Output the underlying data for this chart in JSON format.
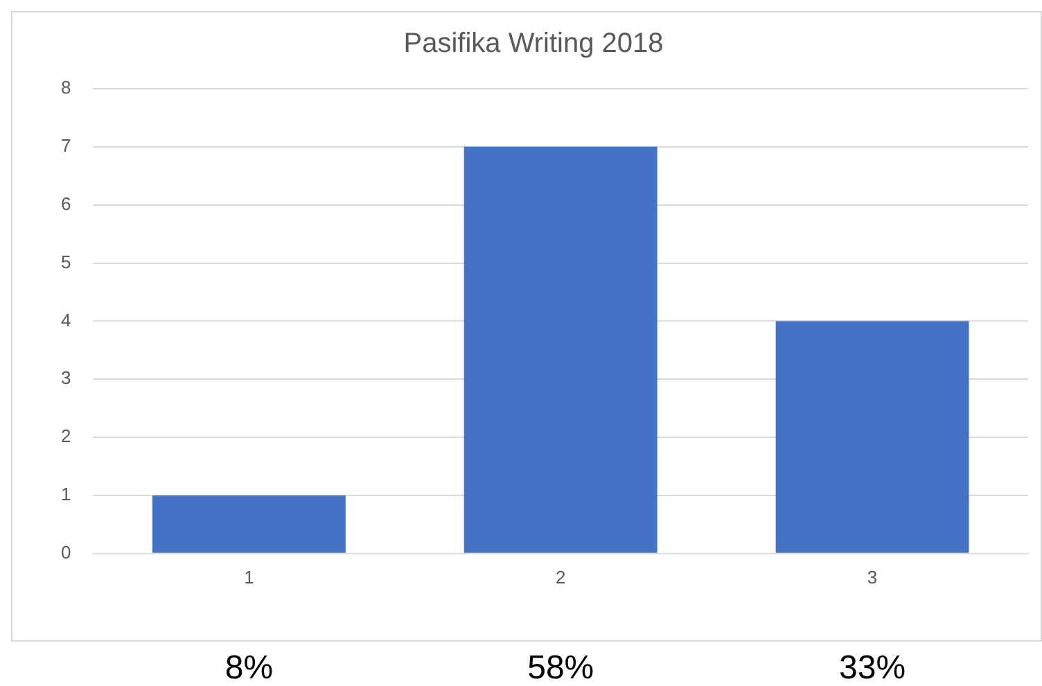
{
  "chart_data": {
    "type": "bar",
    "title": "Pasifika Writing 2018",
    "categories": [
      "1",
      "2",
      "3"
    ],
    "values": [
      1,
      7,
      4
    ],
    "color": "#4472c4",
    "ylim": [
      0,
      8
    ],
    "yticks": [
      0,
      1,
      2,
      3,
      4,
      5,
      6,
      7,
      8
    ],
    "grid": "y",
    "legend": false,
    "annotations": [
      "8%",
      "58%",
      "33%"
    ]
  }
}
